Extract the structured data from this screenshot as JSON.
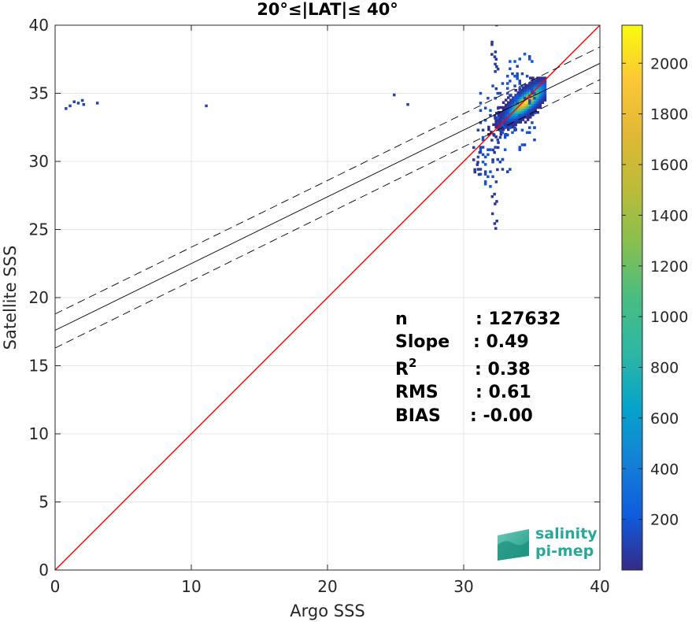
{
  "chart_data": {
    "type": "heatmap",
    "title": "20°≤|LAT|≤ 40°",
    "xlabel": "Argo SSS",
    "ylabel": "Satellite SSS",
    "xlim": [
      0,
      40
    ],
    "ylim": [
      0,
      40
    ],
    "xticks": [
      "0",
      "10",
      "20",
      "30",
      "40"
    ],
    "yticks": [
      "0",
      "5",
      "10",
      "15",
      "20",
      "25",
      "30",
      "35",
      "40"
    ],
    "grid": true,
    "colorbar": {
      "range": [
        0,
        2150
      ],
      "ticks": [
        "200",
        "400",
        "600",
        "800",
        "1000",
        "1200",
        "1400",
        "1600",
        "1800",
        "2000"
      ]
    },
    "lines": [
      {
        "name": "1:1",
        "x": [
          0,
          40
        ],
        "y": [
          0,
          40
        ],
        "color": "#ff0000",
        "style": "solid"
      },
      {
        "name": "fit",
        "x": [
          0,
          40
        ],
        "y": [
          17.6,
          37.2
        ],
        "color": "#000000",
        "style": "solid"
      },
      {
        "name": "fit+",
        "x": [
          0,
          40
        ],
        "y": [
          18.8,
          38.4
        ],
        "color": "#000000",
        "style": "dashed"
      },
      {
        "name": "fit-",
        "x": [
          0,
          40
        ],
        "y": [
          16.3,
          36.0
        ],
        "color": "#000000",
        "style": "dashed"
      }
    ],
    "density_core": {
      "center": [
        34.5,
        34.3
      ],
      "peak_count": 2150
    },
    "stats": [
      {
        "label": "n",
        "value": ": 127632"
      },
      {
        "label": "Slope",
        "value": ": 0.49"
      },
      {
        "label": "R",
        "sup": "2",
        "value": ": 0.38"
      },
      {
        "label": "RMS",
        "value": ": 0.61"
      },
      {
        "label": "BIAS",
        "value": ": -0.00"
      }
    ]
  },
  "logo": {
    "line1": "salinity",
    "line2": "pi-mep"
  },
  "colors": {
    "one_to_one": "#ff0000",
    "fit": "#000000",
    "axis": "#262626"
  }
}
